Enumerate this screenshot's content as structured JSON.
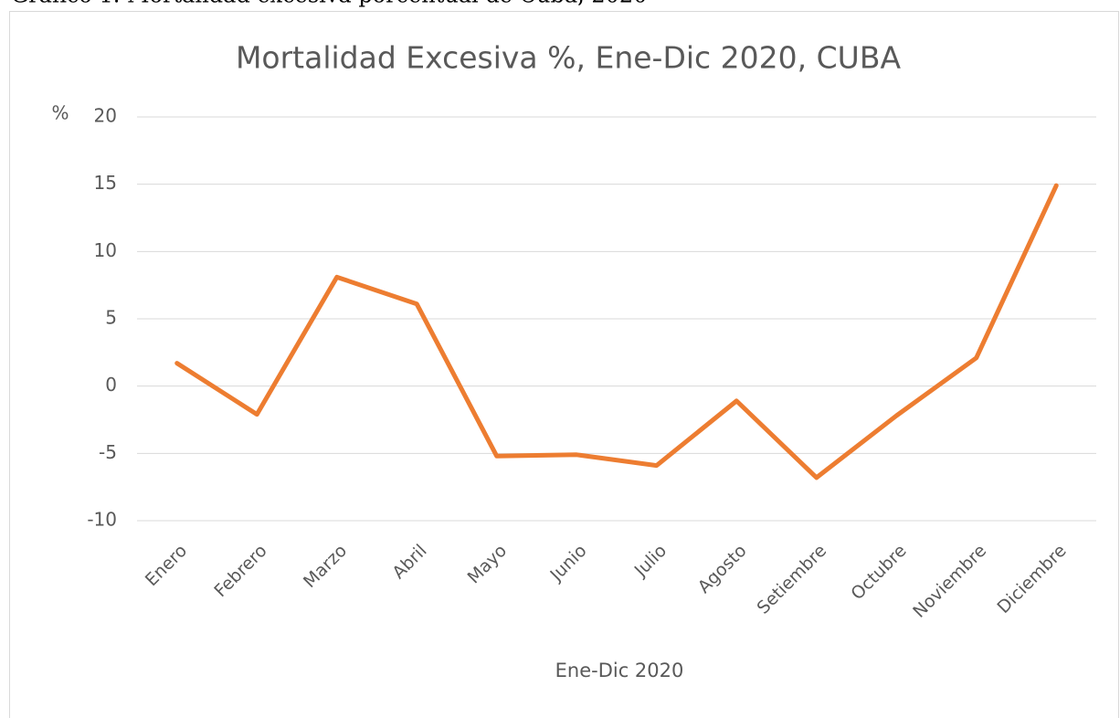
{
  "caption": "Gráfico 1. Mortalidad excesiva porcentual de Cuba, 2020",
  "chart_data": {
    "type": "line",
    "title": "Mortalidad Excesiva %, Ene-Dic 2020, CUBA",
    "y_label": "%",
    "x_label": "Ene-Dic 2020",
    "categories": [
      "Enero",
      "Febrero",
      "Marzo",
      "Abril",
      "Mayo",
      "Junio",
      "Julio",
      "Agosto",
      "Setiembre",
      "Octubre",
      "Noviembre",
      "Diciembre"
    ],
    "values": [
      1.7,
      -2.1,
      8.1,
      6.1,
      -5.2,
      -5.1,
      -5.9,
      -1.1,
      -6.8,
      -2.2,
      2.1,
      14.9
    ],
    "color": "#ed7d31",
    "ylim": [
      -10,
      20
    ],
    "yticks": [
      -10,
      -5,
      0,
      5,
      10,
      15,
      20
    ],
    "grid": true
  }
}
